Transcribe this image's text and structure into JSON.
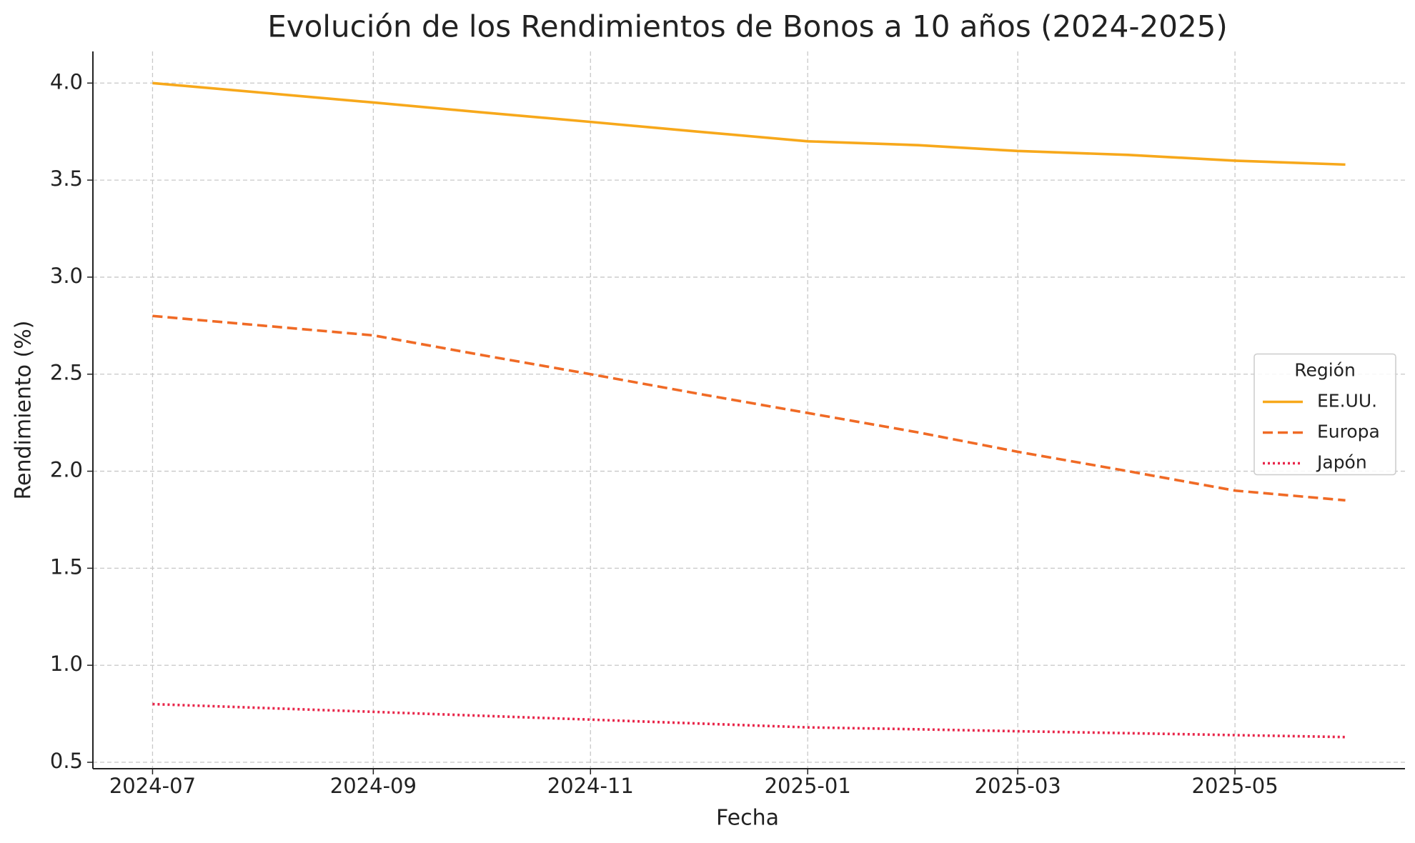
{
  "chart_data": {
    "type": "line",
    "title": "Evolución de los Rendimientos de Bonos a 10 años (2024-2025)",
    "xlabel": "Fecha",
    "ylabel": "Rendimiento (%)",
    "x": [
      "2024-07",
      "2024-08",
      "2024-09",
      "2024-10",
      "2024-11",
      "2024-12",
      "2025-01",
      "2025-02",
      "2025-03",
      "2025-04",
      "2025-05",
      "2025-06"
    ],
    "series": [
      {
        "name": "EE.UU.",
        "color": "#f7a81b",
        "dash": "solid",
        "values": [
          4.0,
          3.95,
          3.9,
          3.85,
          3.8,
          3.75,
          3.7,
          3.68,
          3.65,
          3.63,
          3.6,
          3.58
        ]
      },
      {
        "name": "Europa",
        "color": "#f06a25",
        "dash": "dashed",
        "values": [
          2.8,
          2.75,
          2.7,
          2.6,
          2.5,
          2.4,
          2.3,
          2.2,
          2.1,
          2.0,
          1.9,
          1.85
        ]
      },
      {
        "name": "Japón",
        "color": "#e8264a",
        "dash": "dotted",
        "values": [
          0.8,
          0.78,
          0.76,
          0.74,
          0.72,
          0.7,
          0.68,
          0.67,
          0.66,
          0.65,
          0.64,
          0.63
        ]
      }
    ],
    "xticks": [
      "2024-07",
      "2024-09",
      "2024-11",
      "2025-01",
      "2025-03",
      "2025-05"
    ],
    "ylim": [
      0.467,
      4.163
    ],
    "yticks": [
      0.5,
      {
        "value": 1,
        "label": "1.0"
      },
      1.5,
      {
        "value": 2,
        "label": "2.0"
      },
      2.5,
      {
        "value": 3,
        "label": "3.0"
      },
      3.5,
      {
        "value": 4,
        "label": "4.0"
      }
    ],
    "grid": true,
    "legend_title": "Región",
    "legend_position": "center right"
  }
}
